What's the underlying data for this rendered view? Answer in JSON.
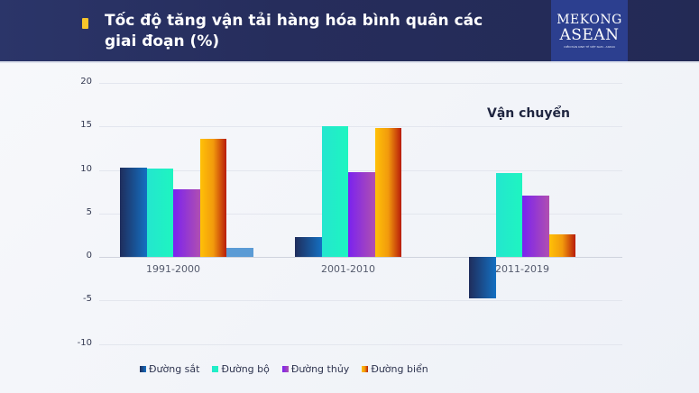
{
  "header": {
    "title": "Tốc độ tăng vận tải hàng hóa bình quân các giai đoạn (%)",
    "logo_line1": "MEKONG",
    "logo_line2": "ASEAN",
    "logo_line3": "DIỄN ĐÀN KINH TẾ VIỆT NAM - ASEAN"
  },
  "chart_data": {
    "type": "bar",
    "title": "Tốc độ tăng vận tải hàng hóa bình quân các giai đoạn (%)",
    "subtitle": "Vận chuyển",
    "xlabel": "",
    "ylabel": "",
    "ylim": [
      -10,
      20
    ],
    "yticks": [
      20,
      15,
      10,
      5,
      0,
      -5,
      -10
    ],
    "grid": true,
    "legend_position": "bottom",
    "categories": [
      "1991-2000",
      "2001-2010",
      "2011-2019"
    ],
    "series": [
      {
        "name": "Đường sắt",
        "color": "#1b6fb8",
        "values": [
          10.3,
          2.3,
          -4.8
        ]
      },
      {
        "name": "Đường bộ",
        "color": "#22e8c4",
        "values": [
          10.2,
          15.0,
          9.6
        ]
      },
      {
        "name": "Đường thủy",
        "color": "#8a3de0",
        "values": [
          7.8,
          9.7,
          7.0
        ]
      },
      {
        "name": "Đường biển",
        "color": "#f29a0c",
        "values": [
          13.6,
          14.8,
          2.6
        ]
      }
    ],
    "annotations": [
      {
        "type": "unlabeled-bar",
        "category": "1991-2000",
        "value": 1.0,
        "color": "#5b9bd5"
      }
    ]
  }
}
